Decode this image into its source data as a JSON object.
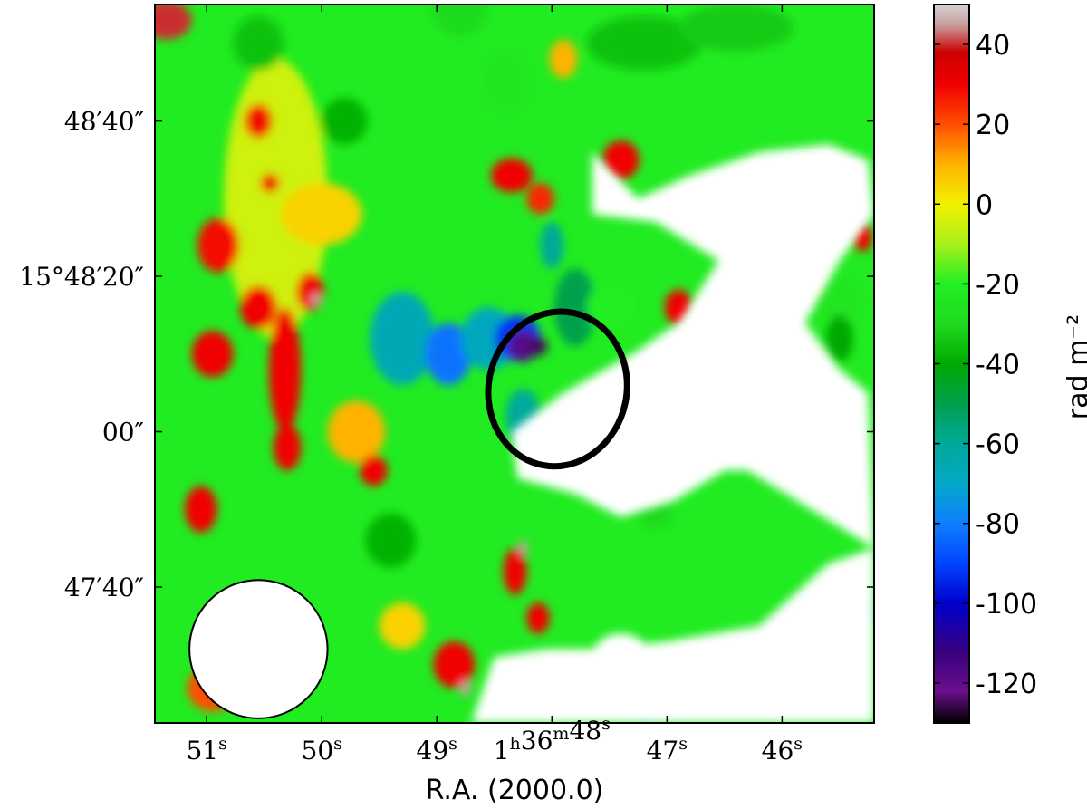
{
  "chart_data": {
    "type": "heatmap",
    "title": "",
    "xlabel": "R.A. (2000.0)",
    "ylabel": "",
    "x_ticks": [
      {
        "label": "51",
        "unit": "s",
        "value": 51.0
      },
      {
        "label": "50",
        "unit": "s",
        "value": 50.0
      },
      {
        "label": "49",
        "unit": "s",
        "value": 49.0
      },
      {
        "label": "1h36m48s",
        "hour": "1",
        "h_unit": "h",
        "minute": "36",
        "m_unit": "m",
        "second": "48",
        "s_unit": "s",
        "value": 48.0
      },
      {
        "label": "47",
        "unit": "s",
        "value": 47.0
      },
      {
        "label": "46",
        "unit": "s",
        "value": 46.0
      }
    ],
    "y_ticks": [
      {
        "label": "48′40″",
        "value": 40
      },
      {
        "label": "15°48′20″",
        "value": 20
      },
      {
        "label": "00″",
        "value": 0
      },
      {
        "label": "47′40″",
        "value": -20
      }
    ],
    "x_range": [
      51.45,
      45.2
    ],
    "y_range": [
      -37.5,
      55
    ],
    "colorbar": {
      "label": "rad m⁻²",
      "range": [
        -130,
        50
      ],
      "ticks": [
        -120,
        -100,
        -80,
        -60,
        -40,
        -20,
        0,
        20,
        40
      ]
    },
    "colormap": [
      {
        "value": -130,
        "color": "#000000"
      },
      {
        "value": -122,
        "color": "#6a0f8c"
      },
      {
        "value": -112,
        "color": "#36007f"
      },
      {
        "value": -100,
        "color": "#0000cc"
      },
      {
        "value": -90,
        "color": "#0044ff"
      },
      {
        "value": -80,
        "color": "#0f7fff"
      },
      {
        "value": -70,
        "color": "#04a8c7"
      },
      {
        "value": -60,
        "color": "#00a999"
      },
      {
        "value": -50,
        "color": "#00a04d"
      },
      {
        "value": -40,
        "color": "#00a900"
      },
      {
        "value": -30,
        "color": "#1fda1f"
      },
      {
        "value": -20,
        "color": "#22ef22"
      },
      {
        "value": -10,
        "color": "#a9f01a"
      },
      {
        "value": 0,
        "color": "#f2f100"
      },
      {
        "value": 10,
        "color": "#ffb300"
      },
      {
        "value": 20,
        "color": "#ff4d00"
      },
      {
        "value": 30,
        "color": "#f00000"
      },
      {
        "value": 38,
        "color": "#cc0000"
      },
      {
        "value": 45,
        "color": "#c8a0a0"
      },
      {
        "value": 50,
        "color": "#d2d2d2"
      }
    ],
    "background_field": -22,
    "regions": [
      {
        "ra": 51.35,
        "dec": 53,
        "sx": 0.22,
        "sy": 2.5,
        "val": 40
      },
      {
        "ra": 50.4,
        "dec": 30,
        "sx": 0.45,
        "sy": 18,
        "val": -5
      },
      {
        "ra": 50.9,
        "dec": 24,
        "sx": 0.18,
        "sy": 3.5,
        "val": 28
      },
      {
        "ra": 50.95,
        "dec": 10,
        "sx": 0.18,
        "sy": 3,
        "val": 30
      },
      {
        "ra": 50.55,
        "dec": 16,
        "sx": 0.16,
        "sy": 2.8,
        "val": 30
      },
      {
        "ra": 50.32,
        "dec": 8,
        "sx": 0.14,
        "sy": 8,
        "val": 30
      },
      {
        "ra": 50.3,
        "dec": -2,
        "sx": 0.12,
        "sy": 3,
        "val": 30
      },
      {
        "ra": 50.1,
        "dec": 18,
        "sx": 0.12,
        "sy": 2.5,
        "val": 30
      },
      {
        "ra": 50.05,
        "dec": 17,
        "sx": 0.05,
        "sy": 0.8,
        "val": 45
      },
      {
        "ra": 50.55,
        "dec": 40,
        "sx": 0.12,
        "sy": 2.2,
        "val": 28
      },
      {
        "ra": 50.45,
        "dec": 32,
        "sx": 0.08,
        "sy": 1.2,
        "val": 30
      },
      {
        "ra": 51.05,
        "dec": -10,
        "sx": 0.14,
        "sy": 3,
        "val": 30
      },
      {
        "ra": 50.95,
        "dec": -33,
        "sx": 0.22,
        "sy": 3,
        "val": 20
      },
      {
        "ra": 50.55,
        "dec": 50,
        "sx": 0.22,
        "sy": 3.5,
        "val": -35
      },
      {
        "ra": 49.8,
        "dec": 40,
        "sx": 0.2,
        "sy": 3,
        "val": -38
      },
      {
        "ra": 50.0,
        "dec": 28,
        "sx": 0.35,
        "sy": 4,
        "val": 5
      },
      {
        "ra": 49.7,
        "dec": 0,
        "sx": 0.25,
        "sy": 4,
        "val": 10
      },
      {
        "ra": 49.55,
        "dec": -5,
        "sx": 0.12,
        "sy": 2,
        "val": 30
      },
      {
        "ra": 49.4,
        "dec": -14,
        "sx": 0.22,
        "sy": 3.5,
        "val": -38
      },
      {
        "ra": 48.85,
        "dec": -30,
        "sx": 0.18,
        "sy": 3,
        "val": 30
      },
      {
        "ra": 48.75,
        "dec": -33,
        "sx": 0.05,
        "sy": 1,
        "val": 45
      },
      {
        "ra": 49.3,
        "dec": -25,
        "sx": 0.2,
        "sy": 3,
        "val": 5
      },
      {
        "ra": 48.32,
        "dec": -18,
        "sx": 0.1,
        "sy": 3,
        "val": 30
      },
      {
        "ra": 48.25,
        "dec": -15,
        "sx": 0.04,
        "sy": 1,
        "val": 45
      },
      {
        "ra": 48.12,
        "dec": -24,
        "sx": 0.1,
        "sy": 2,
        "val": 30
      },
      {
        "ra": 48.8,
        "dec": 55,
        "sx": 0.25,
        "sy": 4,
        "val": -30
      },
      {
        "ra": 48.4,
        "dec": 45,
        "sx": 0.2,
        "sy": 4,
        "val": -25
      },
      {
        "ra": 47.9,
        "dec": 48,
        "sx": 0.12,
        "sy": 2.5,
        "val": 10
      },
      {
        "ra": 48.35,
        "dec": 33,
        "sx": 0.18,
        "sy": 2.2,
        "val": 30
      },
      {
        "ra": 48.1,
        "dec": 30,
        "sx": 0.12,
        "sy": 2,
        "val": 25
      },
      {
        "ra": 47.4,
        "dec": 35,
        "sx": 0.16,
        "sy": 2.5,
        "val": 30
      },
      {
        "ra": 47.2,
        "dec": 50,
        "sx": 0.5,
        "sy": 3.5,
        "val": -35
      },
      {
        "ra": 46.4,
        "dec": 52,
        "sx": 0.5,
        "sy": 3,
        "val": -33
      },
      {
        "ra": 49.3,
        "dec": 12,
        "sx": 0.28,
        "sy": 6,
        "val": -66
      },
      {
        "ra": 48.9,
        "dec": 10,
        "sx": 0.2,
        "sy": 4,
        "val": -82
      },
      {
        "ra": 48.55,
        "dec": 12,
        "sx": 0.24,
        "sy": 4,
        "val": -68
      },
      {
        "ra": 48.3,
        "dec": 12,
        "sx": 0.2,
        "sy": 3,
        "val": -92
      },
      {
        "ra": 48.25,
        "dec": 11,
        "sx": 0.13,
        "sy": 2,
        "val": -118
      },
      {
        "ra": 48.12,
        "dec": 11,
        "sx": 0.08,
        "sy": 1.2,
        "val": -125
      },
      {
        "ra": 47.8,
        "dec": 16,
        "sx": 0.18,
        "sy": 5,
        "val": -50
      },
      {
        "ra": 48.0,
        "dec": 24,
        "sx": 0.1,
        "sy": 3,
        "val": -60
      },
      {
        "ra": 48.25,
        "dec": 2,
        "sx": 0.15,
        "sy": 3.5,
        "val": -60
      },
      {
        "ra": 47.7,
        "dec": 2,
        "sx": 0.14,
        "sy": 3,
        "val": -35
      },
      {
        "ra": 47.5,
        "dec": 16,
        "sx": 0.2,
        "sy": 3,
        "val": -20
      },
      {
        "ra": 46.9,
        "dec": 16,
        "sx": 0.12,
        "sy": 2.3,
        "val": 30
      },
      {
        "ra": 46.5,
        "dec": 10,
        "sx": 0.3,
        "sy": 4,
        "val": 5
      },
      {
        "ra": 47.0,
        "dec": 0,
        "sx": 0.3,
        "sy": 4,
        "val": -45
      },
      {
        "ra": 46.6,
        "dec": -1,
        "sx": 0.15,
        "sy": 3,
        "val": -50
      },
      {
        "ra": 47.1,
        "dec": -10,
        "sx": 0.15,
        "sy": 2.5,
        "val": -30
      },
      {
        "ra": 45.5,
        "dec": 17,
        "sx": 0.2,
        "sy": 3,
        "val": -25
      },
      {
        "ra": 45.8,
        "dec": 20,
        "sx": 0.12,
        "sy": 2,
        "val": 25
      },
      {
        "ra": 45.3,
        "dec": 25,
        "sx": 0.08,
        "sy": 1.8,
        "val": 30
      },
      {
        "ra": 45.5,
        "dec": 12,
        "sx": 0.12,
        "sy": 3,
        "val": -40
      },
      {
        "ra": 46.3,
        "dec": -30,
        "sx": 0.35,
        "sy": 3.5,
        "val": -30
      },
      {
        "ra": 46.9,
        "dec": -33,
        "sx": 0.2,
        "sy": 3,
        "val": -45
      },
      {
        "ra": 47.2,
        "dec": -35,
        "sx": 0.12,
        "sy": 2,
        "val": -72
      },
      {
        "ra": 45.95,
        "dec": -28,
        "sx": 0.14,
        "sy": 4,
        "val": 30
      },
      {
        "ra": 45.4,
        "dec": -23,
        "sx": 0.16,
        "sy": 3,
        "val": -60
      },
      {
        "ra": 45.45,
        "dec": -30,
        "sx": 0.14,
        "sy": 2.5,
        "val": 25
      },
      {
        "ra": 47.6,
        "dec": -32,
        "sx": 0.3,
        "sy": 3,
        "val": 5
      }
    ],
    "mask_regions": [
      {
        "type": "poly",
        "points": [
          [
            47.65,
            36
          ],
          [
            47.25,
            30
          ],
          [
            46.8,
            33
          ],
          [
            46.2,
            36
          ],
          [
            45.6,
            37
          ],
          [
            45.25,
            35
          ],
          [
            45.2,
            28
          ],
          [
            45.5,
            22
          ],
          [
            45.8,
            14
          ],
          [
            45.5,
            8
          ],
          [
            45.25,
            5
          ],
          [
            45.2,
            -15
          ],
          [
            45.6,
            -17
          ],
          [
            46.2,
            -25
          ],
          [
            47.0,
            -27
          ],
          [
            47.6,
            -28
          ],
          [
            48.05,
            -28
          ],
          [
            48.5,
            -29
          ],
          [
            48.7,
            -37.5
          ],
          [
            45.2,
            -37.5
          ],
          [
            45.2,
            -15
          ],
          [
            46.3,
            -5
          ],
          [
            46.5,
            -5
          ],
          [
            46.95,
            -9
          ],
          [
            47.4,
            -11
          ],
          [
            47.8,
            -8
          ],
          [
            48.3,
            -6
          ],
          [
            48.35,
            0
          ],
          [
            47.9,
            5
          ],
          [
            47.3,
            10
          ],
          [
            46.9,
            14
          ],
          [
            46.55,
            22
          ],
          [
            47.1,
            27
          ],
          [
            47.65,
            28
          ]
        ]
      },
      {
        "type": "ellipse",
        "ra": 47.4,
        "dec": -29,
        "sx": 0.25,
        "sy": 3
      },
      {
        "type": "ellipse",
        "ra": 46.6,
        "dec": 27,
        "sx": 0.2,
        "sy": 3
      }
    ],
    "source_ellipse": {
      "center_ra": 47.95,
      "center_dec": 5.5,
      "semi_major_arcsec": 10,
      "semi_minor_ra_sec": 0.6,
      "position_angle_deg": 12
    },
    "beam": {
      "center_ra": 50.55,
      "center_dec": -28,
      "radius_ra_sec": 0.6,
      "radius_dec_arcsec": 8.9
    },
    "smoothing_blur": 5,
    "grid": false,
    "legend": "colorbar-right"
  },
  "icons": {
    "beam-icon": "filled circle",
    "source-ellipse-icon": "outlined ellipse"
  }
}
